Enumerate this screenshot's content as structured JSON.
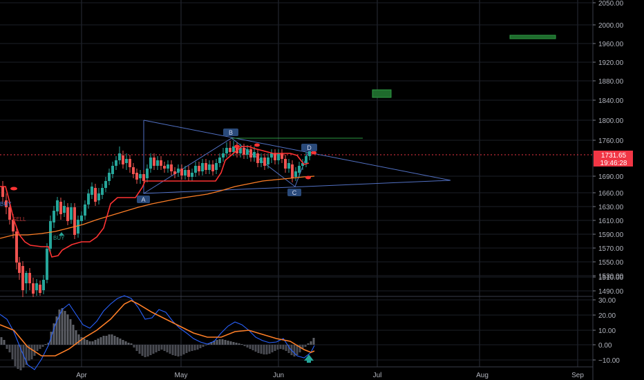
{
  "chart_data": {
    "type": "candlestick",
    "x_ticks": [
      "Apr",
      "May",
      "Jun",
      "Jul",
      "Aug",
      "Sep"
    ],
    "price_axis": {
      "ticks": [
        "2050.00",
        "2000.00",
        "1960.00",
        "1920.00",
        "1880.00",
        "1840.00",
        "1800.00",
        "1760.00",
        "1690.00",
        "1660.00",
        "1630.00",
        "1610.00",
        "1590.00",
        "1570.00",
        "1550.00",
        "1530.00",
        "1510.00",
        "1490.00"
      ],
      "current_price_label": "1731.65",
      "countdown_label": "19:46:28"
    },
    "indicator_axis": {
      "ticks": [
        "30.00",
        "20.00",
        "10.00",
        "0.00",
        "−10.00"
      ]
    },
    "pattern_points": [
      {
        "label": "A",
        "price": 1663
      },
      {
        "label": "B",
        "price": 1770
      },
      {
        "label": "C",
        "price": 1670
      },
      {
        "label": "D",
        "price": 1747
      }
    ],
    "signal_labels": [
      "BUY",
      "BUY",
      "SELL"
    ],
    "target_zones": [
      {
        "price_low": 1843,
        "price_high": 1855,
        "color": "#1e6a2c"
      },
      {
        "price_low": 1980,
        "price_high": 1986,
        "color": "#1e6a2c"
      }
    ],
    "colors": {
      "up": "#26a69a",
      "down": "#ef5350",
      "trailing_line": "#ff3333",
      "moving_average": "#ff7f27",
      "macd_line": "#2962ff",
      "signal_line": "#ff7f27",
      "pattern_lines": "#5271c4",
      "price_tag": "#f23645"
    }
  }
}
